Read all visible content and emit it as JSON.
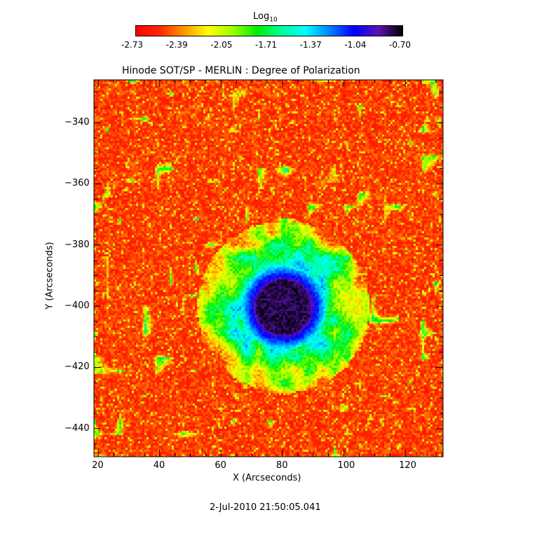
{
  "chart_data": {
    "type": "heatmap",
    "title": "Hinode SOT/SP - MERLIN : Degree of Polarization",
    "xlabel": "X (Arcseconds)",
    "ylabel": "Y (Arcseconds)",
    "xlim": [
      18.6,
      132.3
    ],
    "ylim": [
      -449.2,
      -326
    ],
    "xticks": [
      20,
      40,
      60,
      80,
      100,
      120
    ],
    "yticks": [
      -340,
      -360,
      -380,
      -400,
      -420,
      -440
    ],
    "grid": false,
    "colorbar": {
      "label": "Log",
      "label_subscript": "10",
      "range": [
        -2.73,
        -0.7
      ],
      "tick_labels": [
        "-2.73",
        "-2.39",
        "-2.05",
        "-1.71",
        "-1.37",
        "-1.04",
        "-0.70"
      ],
      "colormap": [
        "#ff0000",
        "#ff2a00",
        "#ff9a00",
        "#ffff00",
        "#9cff00",
        "#00ee00",
        "#00ff9a",
        "#00ffff",
        "#0080ff",
        "#0000ff",
        "#5a14b4",
        "#000000"
      ],
      "placement": "top"
    },
    "features": {
      "sunspot_center": [
        80,
        -400
      ],
      "umbra_value": -0.8,
      "background_value": -2.65
    },
    "timestamp": "2-Jul-2010 21:50:05.041"
  }
}
